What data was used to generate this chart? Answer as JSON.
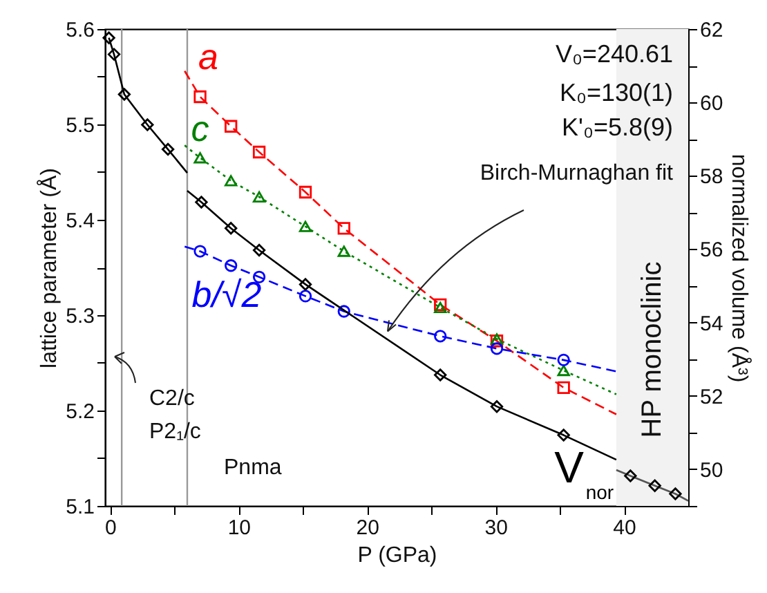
{
  "chart_data": {
    "type": "scatter",
    "xlabel": "P (GPa)",
    "ylabel": "lattice parameter (Å)",
    "y2label": "normalized volume (Å³)",
    "xlim": [
      -0.4,
      45
    ],
    "xticks": [
      0,
      {
        "value": 5,
        "label": null
      },
      10,
      {
        "value": 15,
        "label": null
      },
      20,
      {
        "value": 25,
        "label": null
      },
      30,
      {
        "value": 35,
        "label": null
      },
      40
    ],
    "ylim": [
      5.1,
      5.6
    ],
    "yticks": [
      5.1,
      {
        "value": 5.15,
        "label": null
      },
      5.2,
      {
        "value": 5.25,
        "label": null
      },
      5.3,
      {
        "value": 5.35,
        "label": null
      },
      5.4,
      {
        "value": 5.45,
        "label": null
      },
      5.5,
      {
        "value": 5.55,
        "label": null
      },
      5.6
    ],
    "y2lim": [
      49,
      62
    ],
    "y2ticks": [
      {
        "value": 49,
        "label": null
      },
      50,
      {
        "value": 51,
        "label": null
      },
      52,
      {
        "value": 53,
        "label": null
      },
      54,
      {
        "value": 55,
        "label": null
      },
      56,
      {
        "value": 57,
        "label": null
      },
      58,
      {
        "value": 59,
        "label": null
      },
      60,
      {
        "value": 61,
        "label": null
      },
      62
    ],
    "grid": false,
    "legend": false,
    "series": [
      {
        "name": "a",
        "type": "scatter",
        "marker": "square",
        "color": "#ff0000",
        "x": [
          7.0,
          9.4,
          11.6,
          15.2,
          18.2,
          25.7,
          30.1,
          35.3
        ],
        "values": [
          5.529,
          5.498,
          5.471,
          5.429,
          5.391,
          5.311,
          5.273,
          5.224
        ]
      },
      {
        "name": "c",
        "type": "scatter",
        "marker": "triangle",
        "color": "#008000",
        "x": [
          7.0,
          9.4,
          11.6,
          15.2,
          18.2,
          25.7,
          30.1,
          35.3
        ],
        "values": [
          5.465,
          5.441,
          5.424,
          5.393,
          5.367,
          5.308,
          5.275,
          5.242
        ]
      },
      {
        "name": "b/√2",
        "type": "scatter",
        "marker": "circle",
        "color": "#0000ff",
        "x": [
          7.0,
          9.4,
          11.6,
          15.2,
          18.2,
          25.7,
          30.1,
          35.3
        ],
        "values": [
          5.367,
          5.352,
          5.34,
          5.32,
          5.304,
          5.278,
          5.265,
          5.253
        ]
      },
      {
        "name": "V$_{nor}$",
        "type": "scatter",
        "marker": "diamond",
        "color": "#000000",
        "axis": "y2",
        "x": [
          -0.1,
          0.3,
          1.1,
          2.9,
          4.5,
          7.1,
          9.4,
          11.6,
          15.2,
          25.7,
          30.1,
          35.3,
          40.5,
          42.4,
          44.0
        ],
        "values": [
          61.76,
          61.31,
          60.22,
          59.39,
          58.72,
          57.28,
          56.57,
          55.97,
          55.04,
          52.57,
          51.71,
          50.93,
          49.82,
          49.55,
          49.33
        ]
      },
      {
        "type": "line",
        "line_style": "dashed",
        "color": "#ff0000",
        "x": [
          5.8,
          7.0,
          9.4,
          11.6,
          15.2,
          18.2,
          25.7,
          30.1,
          35.3,
          39.4
        ],
        "values": [
          5.556,
          5.529,
          5.498,
          5.471,
          5.429,
          5.391,
          5.311,
          5.273,
          5.224,
          5.196
        ]
      },
      {
        "type": "line",
        "line_style": "dotted",
        "color": "#008000",
        "x": [
          5.8,
          7.0,
          9.4,
          11.6,
          15.2,
          18.2,
          25.7,
          30.1,
          35.3,
          39.4
        ],
        "values": [
          5.478,
          5.465,
          5.441,
          5.424,
          5.393,
          5.367,
          5.308,
          5.275,
          5.242,
          5.217
        ]
      },
      {
        "type": "line",
        "line_style": "dashed",
        "color": "#0000ff",
        "x": [
          5.8,
          7.0,
          9.4,
          11.6,
          15.2,
          18.2,
          25.7,
          30.1,
          35.3,
          39.4
        ],
        "values": [
          5.372,
          5.367,
          5.352,
          5.34,
          5.32,
          5.304,
          5.278,
          5.265,
          5.253,
          5.241
        ]
      },
      {
        "type": "line",
        "line_style": "solid",
        "color": "#000000",
        "axis": "y2",
        "x": [
          -0.1,
          0.3,
          1.1,
          2.9,
          4.5,
          6.0
        ],
        "values": [
          61.76,
          61.31,
          60.22,
          59.39,
          58.72,
          58.08
        ]
      },
      {
        "type": "line",
        "line_style": "solid",
        "color": "#000000",
        "axis": "y2",
        "x": [
          6.0,
          7.1,
          9.4,
          11.6,
          15.2,
          25.7,
          30.1,
          35.3,
          39.4
        ],
        "values": [
          57.59,
          57.28,
          56.57,
          55.97,
          55.04,
          52.57,
          51.71,
          50.93,
          50.26
        ]
      },
      {
        "type": "line",
        "line_style": "solid",
        "color": "#555555",
        "axis": "y2",
        "x": [
          39.4,
          40.5,
          42.4,
          44.0,
          45
        ],
        "values": [
          49.98,
          49.82,
          49.55,
          49.33,
          49.14
        ]
      }
    ],
    "ref_lines": [
      {
        "axis": "x",
        "value": 0.9,
        "color": "#999999"
      },
      {
        "axis": "x",
        "value": 6.0,
        "color": "#999999"
      }
    ],
    "bands": [
      {
        "axis": "x",
        "from": 39.4,
        "to": 45,
        "label": "HP monoclinic",
        "color": "#f2f2f2"
      }
    ],
    "annotations": [
      "V₀=240.61",
      "K₀=130(1)",
      "K'₀=5.8(9)",
      {
        "text": "Birch-Murnaghan fit",
        "x": 21.6,
        "y": 5.283
      },
      "C2/c",
      "P2₁/c",
      "Pnma"
    ]
  }
}
